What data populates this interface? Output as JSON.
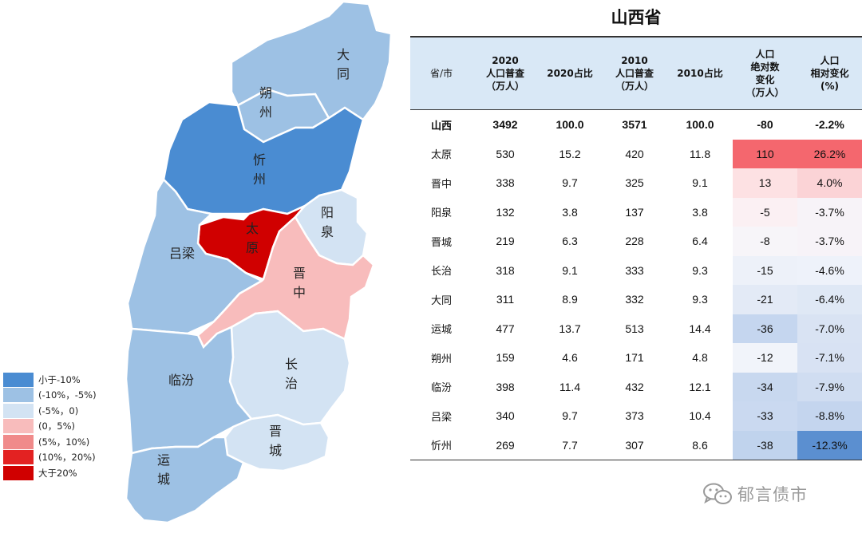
{
  "title": "山西省",
  "colors": {
    "lt_-10": "#4a8cd2",
    "-10_-5": "#9dc1e4",
    "-5_0": "#d3e3f3",
    "0_5": "#f8bcbc",
    "5_10": "#f08a8a",
    "10_20": "#e32222",
    "gt_20": "#d00000",
    "header_bg": "#d9e8f6"
  },
  "legend": [
    {
      "label": "小于-10%",
      "color": "#4a8cd2"
    },
    {
      "label": "(-10%，-5%)",
      "color": "#9dc1e4"
    },
    {
      "label": "(-5%，0)",
      "color": "#d3e3f3"
    },
    {
      "label": "(0，5%)",
      "color": "#f8bcbc"
    },
    {
      "label": "(5%，10%)",
      "color": "#f08a8a"
    },
    {
      "label": "(10%，20%)",
      "color": "#e32222"
    },
    {
      "label": "大于20%",
      "color": "#d00000"
    }
  ],
  "map_regions": [
    {
      "label_chars": "大同",
      "fill_class": "-10_-5"
    },
    {
      "label_chars": "朔州",
      "fill_class": "-10_-5"
    },
    {
      "label_chars": "忻州",
      "fill_class": "lt_-10"
    },
    {
      "label_chars": "太原",
      "fill_class": "gt_20"
    },
    {
      "label_chars": "阳泉",
      "fill_class": "-5_0"
    },
    {
      "label_chars": "吕梁",
      "fill_class": "-10_-5"
    },
    {
      "label_chars": "晋中",
      "fill_class": "0_5"
    },
    {
      "label_chars": "长治",
      "fill_class": "-5_0"
    },
    {
      "label_chars": "临汾",
      "fill_class": "-10_-5"
    },
    {
      "label_chars": "晋城",
      "fill_class": "-5_0"
    },
    {
      "label_chars": "运城",
      "fill_class": "-10_-5"
    }
  ],
  "table": {
    "headers": [
      "省/市",
      "2020\n人口普查\n（万人）",
      "2020占比",
      "2010\n人口普查\n（万人）",
      "2010占比",
      "人口\n绝对数\n变化\n（万人）",
      "人口\n相对变化\n(%)"
    ],
    "rows": [
      {
        "name": "山西",
        "pop2020": "3492",
        "share2020": "100.0",
        "pop2010": "3571",
        "share2010": "100.0",
        "abs": "-80",
        "rel": "-2.2%",
        "abs_bg": "",
        "rel_bg": ""
      },
      {
        "name": "太原",
        "pop2020": "530",
        "share2020": "15.2",
        "pop2010": "420",
        "share2010": "11.8",
        "abs": "110",
        "rel": "26.2%",
        "abs_bg": "#f4676e",
        "rel_bg": "#f4676e"
      },
      {
        "name": "晋中",
        "pop2020": "338",
        "share2020": "9.7",
        "pop2010": "325",
        "share2010": "9.1",
        "abs": "13",
        "rel": "4.0%",
        "abs_bg": "#fde1e3",
        "rel_bg": "#fbd3d6"
      },
      {
        "name": "阳泉",
        "pop2020": "132",
        "share2020": "3.8",
        "pop2010": "137",
        "share2010": "3.8",
        "abs": "-5",
        "rel": "-3.7%",
        "abs_bg": "#fbf0f3",
        "rel_bg": "#f7f3f8"
      },
      {
        "name": "晋城",
        "pop2020": "219",
        "share2020": "6.3",
        "pop2010": "228",
        "share2010": "6.4",
        "abs": "-8",
        "rel": "-3.7%",
        "abs_bg": "#f7f5f9",
        "rel_bg": "#f7f3f8"
      },
      {
        "name": "长治",
        "pop2020": "318",
        "share2020": "9.1",
        "pop2010": "333",
        "share2010": "9.3",
        "abs": "-15",
        "rel": "-4.6%",
        "abs_bg": "#edf1f9",
        "rel_bg": "#eef2fa"
      },
      {
        "name": "大同",
        "pop2020": "311",
        "share2020": "8.9",
        "pop2010": "332",
        "share2010": "9.3",
        "abs": "-21",
        "rel": "-6.4%",
        "abs_bg": "#e3eaf6",
        "rel_bg": "#dfe8f5"
      },
      {
        "name": "运城",
        "pop2020": "477",
        "share2020": "13.7",
        "pop2010": "513",
        "share2010": "14.4",
        "abs": "-36",
        "rel": "-7.0%",
        "abs_bg": "#c5d6ef",
        "rel_bg": "#d9e3f3"
      },
      {
        "name": "朔州",
        "pop2020": "159",
        "share2020": "4.6",
        "pop2010": "171",
        "share2010": "4.8",
        "abs": "-12",
        "rel": "-7.1%",
        "abs_bg": "#f1f4fa",
        "rel_bg": "#d8e2f3"
      },
      {
        "name": "临汾",
        "pop2020": "398",
        "share2020": "11.4",
        "pop2010": "432",
        "share2010": "12.1",
        "abs": "-34",
        "rel": "-7.9%",
        "abs_bg": "#c8d8ef",
        "rel_bg": "#d0ddf1"
      },
      {
        "name": "吕梁",
        "pop2020": "340",
        "share2020": "9.7",
        "pop2010": "373",
        "share2010": "10.4",
        "abs": "-33",
        "rel": "-8.8%",
        "abs_bg": "#cad9f0",
        "rel_bg": "#c4d5ee"
      },
      {
        "name": "忻州",
        "pop2020": "269",
        "share2020": "7.7",
        "pop2010": "307",
        "share2010": "8.6",
        "abs": "-38",
        "rel": "-12.3%",
        "abs_bg": "#c0d3ed",
        "rel_bg": "#5b8fd0"
      }
    ]
  },
  "watermark": {
    "icon": "wechat-icon",
    "text": "郁言债市"
  }
}
